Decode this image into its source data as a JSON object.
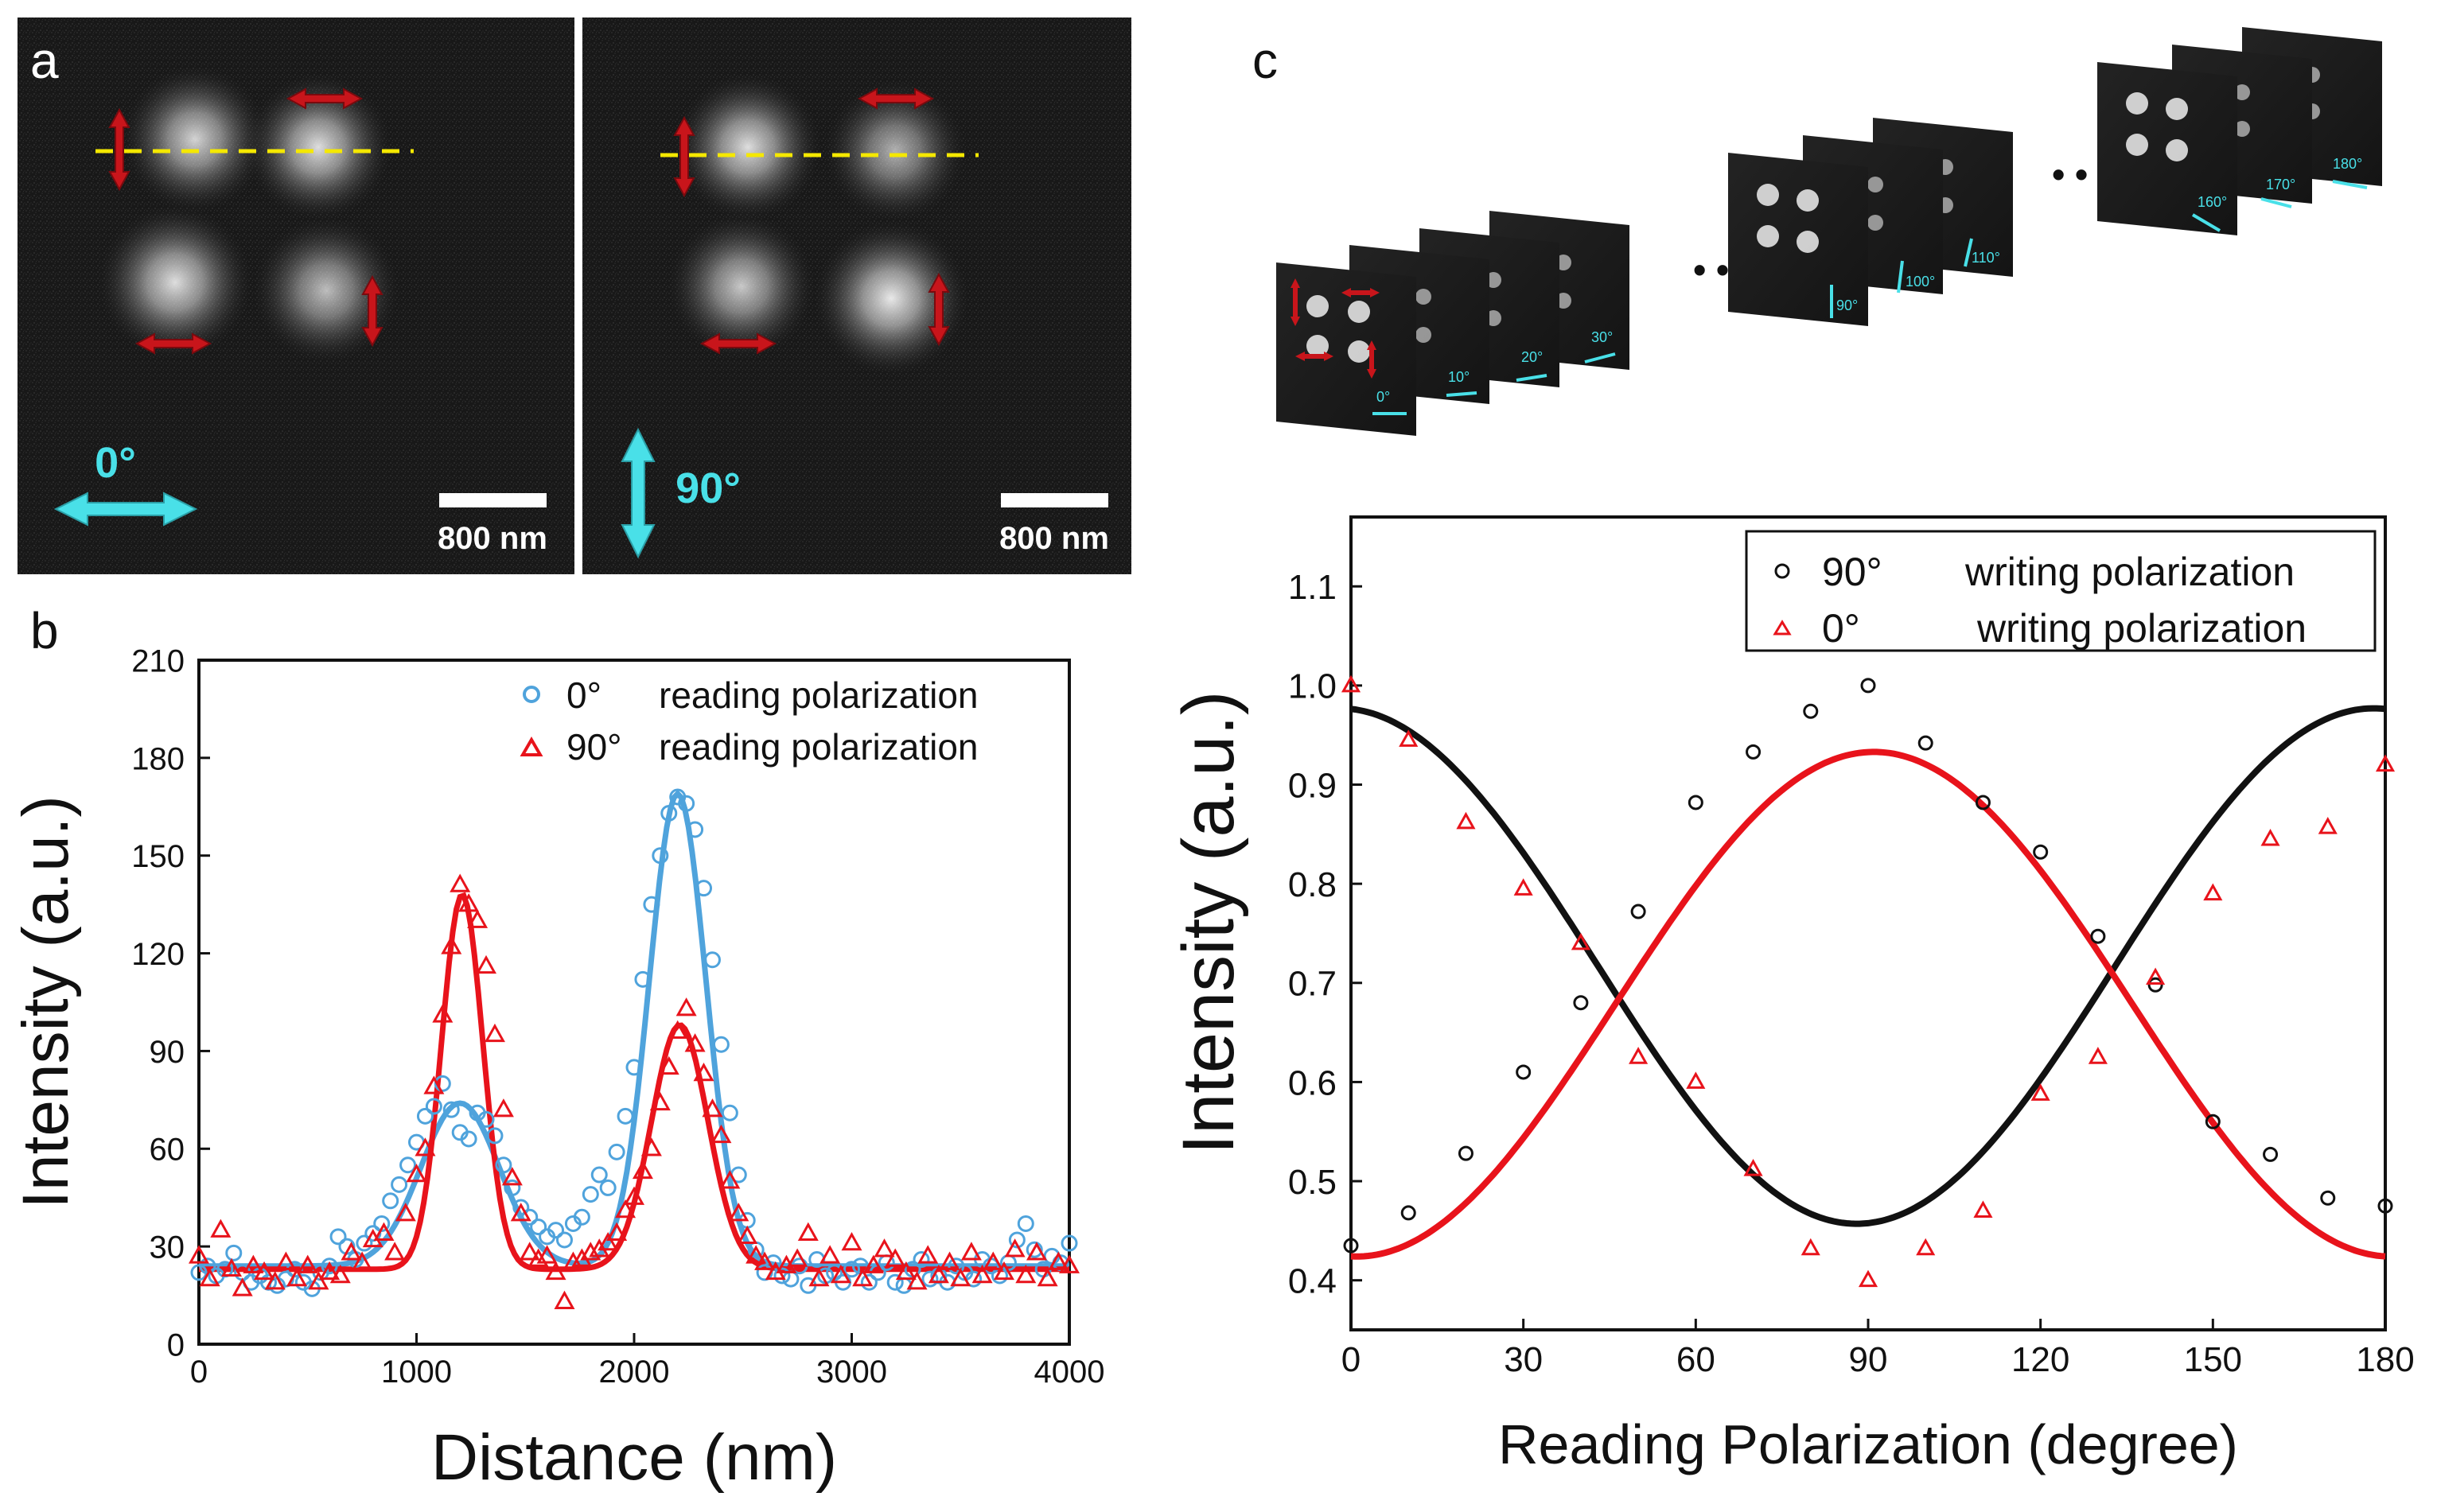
{
  "panels": {
    "a": {
      "label": "a",
      "images": [
        {
          "polarization_label": "0°",
          "scale_bar": "800 nm"
        },
        {
          "polarization_label": "90°",
          "scale_bar": "800 nm"
        }
      ]
    },
    "c_stacks": {
      "label": "c",
      "ellipsis": "• • •",
      "groups": [
        {
          "frames": [
            "0°",
            "10°",
            "20°",
            "30°"
          ]
        },
        {
          "frames": [
            "90°",
            "100°",
            "110°"
          ]
        },
        {
          "frames": [
            "160°",
            "170°",
            "180°"
          ]
        }
      ]
    }
  },
  "colors": {
    "blue": "#4fa3dc",
    "red": "#e8131b",
    "black": "#111111",
    "cyan_label": "#49e0e8",
    "guide_line": "#f5e800",
    "image_bg": "#161616"
  },
  "chart_data": [
    {
      "id": "b",
      "panel_label": "b",
      "type": "line",
      "xlabel": "Distance (nm)",
      "ylabel": "Intensity (a.u.)",
      "xlim": [
        0,
        4000
      ],
      "ylim": [
        0,
        210
      ],
      "xticks": [
        0,
        1000,
        2000,
        3000,
        4000
      ],
      "yticks": [
        0,
        30,
        60,
        90,
        120,
        150,
        180,
        210
      ],
      "legend_position": "top-right",
      "series": [
        {
          "name": "0° reading polarization",
          "legend_angle": "0°",
          "legend_text": "reading polarization",
          "marker": "circle",
          "color": "#4fa3dc",
          "fit": {
            "baseline": 24,
            "peaks": [
              {
                "amp": 50,
                "center": 1200,
                "sigma": 180
              },
              {
                "amp": 145,
                "center": 2200,
                "sigma": 130
              }
            ]
          },
          "points": [
            [
              0,
              22
            ],
            [
              40,
              24
            ],
            [
              80,
              21
            ],
            [
              120,
              23
            ],
            [
              160,
              28
            ],
            [
              200,
              22
            ],
            [
              240,
              19
            ],
            [
              280,
              21
            ],
            [
              320,
              19
            ],
            [
              360,
              18
            ],
            [
              400,
              20
            ],
            [
              440,
              23
            ],
            [
              480,
              19
            ],
            [
              520,
              17
            ],
            [
              560,
              22
            ],
            [
              600,
              24
            ],
            [
              640,
              33
            ],
            [
              680,
              30
            ],
            [
              720,
              26
            ],
            [
              760,
              31
            ],
            [
              800,
              34
            ],
            [
              840,
              37
            ],
            [
              880,
              44
            ],
            [
              920,
              49
            ],
            [
              960,
              55
            ],
            [
              1000,
              62
            ],
            [
              1040,
              70
            ],
            [
              1080,
              73
            ],
            [
              1120,
              80
            ],
            [
              1160,
              72
            ],
            [
              1200,
              65
            ],
            [
              1240,
              63
            ],
            [
              1280,
              71
            ],
            [
              1320,
              69
            ],
            [
              1360,
              64
            ],
            [
              1400,
              55
            ],
            [
              1440,
              48
            ],
            [
              1480,
              42
            ],
            [
              1520,
              39
            ],
            [
              1560,
              36
            ],
            [
              1600,
              33
            ],
            [
              1640,
              35
            ],
            [
              1680,
              32
            ],
            [
              1720,
              37
            ],
            [
              1760,
              39
            ],
            [
              1800,
              46
            ],
            [
              1840,
              52
            ],
            [
              1880,
              48
            ],
            [
              1920,
              59
            ],
            [
              1960,
              70
            ],
            [
              2000,
              85
            ],
            [
              2040,
              112
            ],
            [
              2080,
              135
            ],
            [
              2120,
              150
            ],
            [
              2160,
              163
            ],
            [
              2200,
              168
            ],
            [
              2240,
              166
            ],
            [
              2280,
              158
            ],
            [
              2320,
              140
            ],
            [
              2360,
              118
            ],
            [
              2400,
              92
            ],
            [
              2440,
              71
            ],
            [
              2480,
              52
            ],
            [
              2520,
              38
            ],
            [
              2560,
              29
            ],
            [
              2600,
              22
            ],
            [
              2640,
              25
            ],
            [
              2680,
              21
            ],
            [
              2720,
              20
            ],
            [
              2760,
              24
            ],
            [
              2800,
              18
            ],
            [
              2840,
              26
            ],
            [
              2880,
              21
            ],
            [
              2920,
              22
            ],
            [
              2960,
              19
            ],
            [
              3000,
              23
            ],
            [
              3040,
              24
            ],
            [
              3080,
              19
            ],
            [
              3120,
              22
            ],
            [
              3160,
              25
            ],
            [
              3200,
              19
            ],
            [
              3240,
              18
            ],
            [
              3280,
              23
            ],
            [
              3320,
              26
            ],
            [
              3360,
              20
            ],
            [
              3400,
              21
            ],
            [
              3440,
              19
            ],
            [
              3480,
              24
            ],
            [
              3520,
              22
            ],
            [
              3560,
              20
            ],
            [
              3600,
              26
            ],
            [
              3640,
              24
            ],
            [
              3680,
              21
            ],
            [
              3720,
              25
            ],
            [
              3760,
              32
            ],
            [
              3800,
              37
            ],
            [
              3840,
              29
            ],
            [
              3880,
              23
            ],
            [
              3920,
              27
            ],
            [
              3960,
              25
            ],
            [
              4000,
              31
            ]
          ]
        },
        {
          "name": "90° reading polarization",
          "legend_angle": "90°",
          "legend_text": "reading polarization",
          "marker": "triangle",
          "color": "#e8131b",
          "fit": {
            "baseline": 23,
            "peaks": [
              {
                "amp": 115,
                "center": 1210,
                "sigma": 95
              },
              {
                "amp": 75,
                "center": 2210,
                "sigma": 130
              }
            ]
          },
          "points": [
            [
              0,
              27
            ],
            [
              50,
              20
            ],
            [
              100,
              35
            ],
            [
              150,
              23
            ],
            [
              200,
              17
            ],
            [
              250,
              24
            ],
            [
              300,
              22
            ],
            [
              350,
              19
            ],
            [
              400,
              25
            ],
            [
              450,
              20
            ],
            [
              500,
              24
            ],
            [
              550,
              19
            ],
            [
              600,
              22
            ],
            [
              650,
              21
            ],
            [
              700,
              28
            ],
            [
              750,
              25
            ],
            [
              800,
              32
            ],
            [
              850,
              34
            ],
            [
              900,
              28
            ],
            [
              950,
              40
            ],
            [
              1000,
              52
            ],
            [
              1040,
              60
            ],
            [
              1080,
              79
            ],
            [
              1120,
              101
            ],
            [
              1160,
              122
            ],
            [
              1200,
              141
            ],
            [
              1240,
              135
            ],
            [
              1280,
              130
            ],
            [
              1320,
              116
            ],
            [
              1360,
              95
            ],
            [
              1400,
              72
            ],
            [
              1440,
              51
            ],
            [
              1480,
              40
            ],
            [
              1520,
              28
            ],
            [
              1560,
              26
            ],
            [
              1600,
              27
            ],
            [
              1640,
              22
            ],
            [
              1680,
              13
            ],
            [
              1720,
              25
            ],
            [
              1760,
              26
            ],
            [
              1800,
              28
            ],
            [
              1840,
              29
            ],
            [
              1880,
              31
            ],
            [
              1920,
              34
            ],
            [
              1960,
              41
            ],
            [
              2000,
              45
            ],
            [
              2040,
              53
            ],
            [
              2080,
              60
            ],
            [
              2120,
              74
            ],
            [
              2160,
              85
            ],
            [
              2200,
              96
            ],
            [
              2240,
              103
            ],
            [
              2280,
              92
            ],
            [
              2320,
              83
            ],
            [
              2360,
              72
            ],
            [
              2400,
              64
            ],
            [
              2440,
              50
            ],
            [
              2480,
              40
            ],
            [
              2520,
              33
            ],
            [
              2560,
              27
            ],
            [
              2600,
              25
            ],
            [
              2650,
              22
            ],
            [
              2700,
              24
            ],
            [
              2750,
              26
            ],
            [
              2800,
              34
            ],
            [
              2850,
              20
            ],
            [
              2900,
              27
            ],
            [
              2950,
              21
            ],
            [
              3000,
              31
            ],
            [
              3050,
              20
            ],
            [
              3100,
              24
            ],
            [
              3150,
              29
            ],
            [
              3200,
              26
            ],
            [
              3250,
              22
            ],
            [
              3300,
              19
            ],
            [
              3350,
              27
            ],
            [
              3400,
              21
            ],
            [
              3450,
              25
            ],
            [
              3500,
              20
            ],
            [
              3550,
              28
            ],
            [
              3600,
              21
            ],
            [
              3650,
              25
            ],
            [
              3700,
              22
            ],
            [
              3750,
              29
            ],
            [
              3800,
              21
            ],
            [
              3850,
              28
            ],
            [
              3900,
              20
            ],
            [
              3950,
              25
            ],
            [
              4000,
              24
            ]
          ]
        }
      ]
    },
    {
      "id": "c",
      "type": "scatter",
      "xlabel": "Reading Polarization (degree)",
      "ylabel": "Intensity (a.u.)",
      "xlim": [
        0,
        180
      ],
      "ylim": [
        0.35,
        1.17
      ],
      "xticks": [
        0,
        30,
        60,
        90,
        120,
        150,
        180
      ],
      "yticks": [
        0.4,
        0.5,
        0.6,
        0.7,
        0.8,
        0.9,
        1.0,
        1.1
      ],
      "legend_position": "top-right",
      "series": [
        {
          "name": "90° writing polarization",
          "legend_angle": "90°",
          "legend_text": "writing polarization",
          "marker": "circle",
          "color": "#111111",
          "fit": {
            "mean": 0.717,
            "amp": 0.26,
            "phase_deg": 88,
            "sign": -1
          },
          "points": [
            [
              0,
              0.435
            ],
            [
              10,
              0.468
            ],
            [
              20,
              0.528
            ],
            [
              30,
              0.61
            ],
            [
              40,
              0.68
            ],
            [
              50,
              0.772
            ],
            [
              60,
              0.882
            ],
            [
              70,
              0.933
            ],
            [
              80,
              0.974
            ],
            [
              90,
              1.0
            ],
            [
              100,
              0.942
            ],
            [
              110,
              0.882
            ],
            [
              120,
              0.832
            ],
            [
              130,
              0.747
            ],
            [
              140,
              0.698
            ],
            [
              150,
              0.56
            ],
            [
              160,
              0.527
            ],
            [
              170,
              0.483
            ],
            [
              180,
              0.475
            ]
          ]
        },
        {
          "name": "0° writing polarization",
          "legend_angle": "0°",
          "legend_text": "writing polarization",
          "marker": "triangle",
          "color": "#e8131b",
          "fit": {
            "mean": 0.6785,
            "amp": 0.2545,
            "phase_deg": 91,
            "sign": 1
          },
          "points": [
            [
              0,
              1.0
            ],
            [
              10,
              0.945
            ],
            [
              20,
              0.862
            ],
            [
              30,
              0.795
            ],
            [
              40,
              0.74
            ],
            [
              50,
              0.625
            ],
            [
              60,
              0.6
            ],
            [
              70,
              0.512
            ],
            [
              80,
              0.432
            ],
            [
              90,
              0.4
            ],
            [
              100,
              0.432
            ],
            [
              110,
              0.47
            ],
            [
              120,
              0.588
            ],
            [
              130,
              0.625
            ],
            [
              140,
              0.705
            ],
            [
              150,
              0.79
            ],
            [
              160,
              0.845
            ],
            [
              170,
              0.857
            ],
            [
              180,
              0.92
            ]
          ]
        }
      ]
    }
  ]
}
